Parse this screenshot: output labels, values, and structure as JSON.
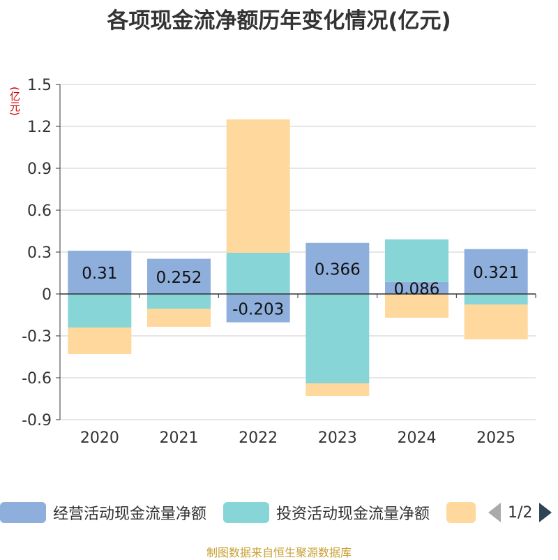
{
  "chart_data": {
    "type": "bar",
    "stacked": true,
    "title": "各项现金流净额历年变化情况(亿元)",
    "ylabel": "(亿元)",
    "xlabel": "",
    "categories": [
      "2020",
      "2021",
      "2022",
      "2023",
      "2024",
      "2025"
    ],
    "ylim": [
      -0.9,
      1.5
    ],
    "yticks": [
      1.5,
      1.2,
      0.9,
      0.6,
      0.3,
      0,
      -0.3,
      -0.6,
      -0.9
    ],
    "ytick_labels": [
      "1.5",
      "1.2",
      "0.9",
      "0.6",
      "0.3",
      "0",
      "-0.3",
      "-0.6",
      "-0.9"
    ],
    "grid": true,
    "series": [
      {
        "name": "经营活动现金流量净额",
        "color": "#8eaedb",
        "values": [
          0.31,
          0.252,
          -0.203,
          0.366,
          0.086,
          0.321
        ],
        "labels": [
          "0.31",
          "0.252",
          "-0.203",
          "0.366",
          "0.086",
          "0.321"
        ]
      },
      {
        "name": "投资活动现金流量净额",
        "color": "#88d5d8",
        "values": [
          -0.24,
          -0.105,
          0.295,
          -0.64,
          0.305,
          -0.075
        ]
      },
      {
        "name": "",
        "color": "#fed89c",
        "values": [
          -0.19,
          -0.13,
          0.955,
          -0.09,
          -0.17,
          -0.25
        ]
      }
    ],
    "legend_position": "bottom"
  },
  "legend": {
    "page_text": "1/2"
  },
  "footer": "制图数据来自恒生聚源数据库"
}
